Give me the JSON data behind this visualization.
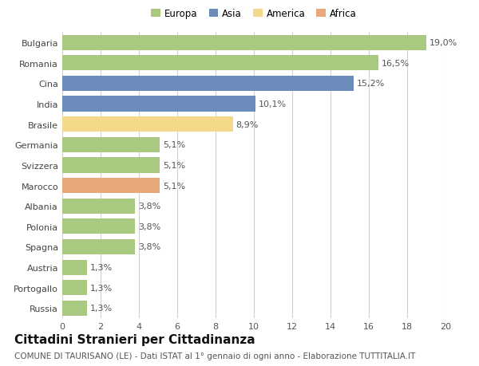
{
  "categories": [
    "Bulgaria",
    "Romania",
    "Cina",
    "India",
    "Brasile",
    "Germania",
    "Svizzera",
    "Marocco",
    "Albania",
    "Polonia",
    "Spagna",
    "Austria",
    "Portogallo",
    "Russia"
  ],
  "values": [
    19.0,
    16.5,
    15.2,
    10.1,
    8.9,
    5.1,
    5.1,
    5.1,
    3.8,
    3.8,
    3.8,
    1.3,
    1.3,
    1.3
  ],
  "labels": [
    "19,0%",
    "16,5%",
    "15,2%",
    "10,1%",
    "8,9%",
    "5,1%",
    "5,1%",
    "5,1%",
    "3,8%",
    "3,8%",
    "3,8%",
    "1,3%",
    "1,3%",
    "1,3%"
  ],
  "colors": [
    "#a8c97f",
    "#a8c97f",
    "#6b8cba",
    "#6b8cba",
    "#f5d98a",
    "#a8c97f",
    "#a8c97f",
    "#e8a87c",
    "#a8c97f",
    "#a8c97f",
    "#a8c97f",
    "#a8c97f",
    "#a8c97f",
    "#a8c97f"
  ],
  "legend_labels": [
    "Europa",
    "Asia",
    "America",
    "Africa"
  ],
  "legend_colors": [
    "#a8c97f",
    "#6b8cba",
    "#f5d98a",
    "#e8a87c"
  ],
  "xlim": [
    0,
    20
  ],
  "xticks": [
    0,
    2,
    4,
    6,
    8,
    10,
    12,
    14,
    16,
    18,
    20
  ],
  "title": "Cittadini Stranieri per Cittadinanza",
  "subtitle": "COMUNE DI TAURISANO (LE) - Dati ISTAT al 1° gennaio di ogni anno - Elaborazione TUTTITALIA.IT",
  "bg_color": "#ffffff",
  "grid_color": "#d0d0d0",
  "bar_height": 0.75,
  "label_fontsize": 8,
  "tick_fontsize": 8,
  "title_fontsize": 11,
  "subtitle_fontsize": 7.5
}
